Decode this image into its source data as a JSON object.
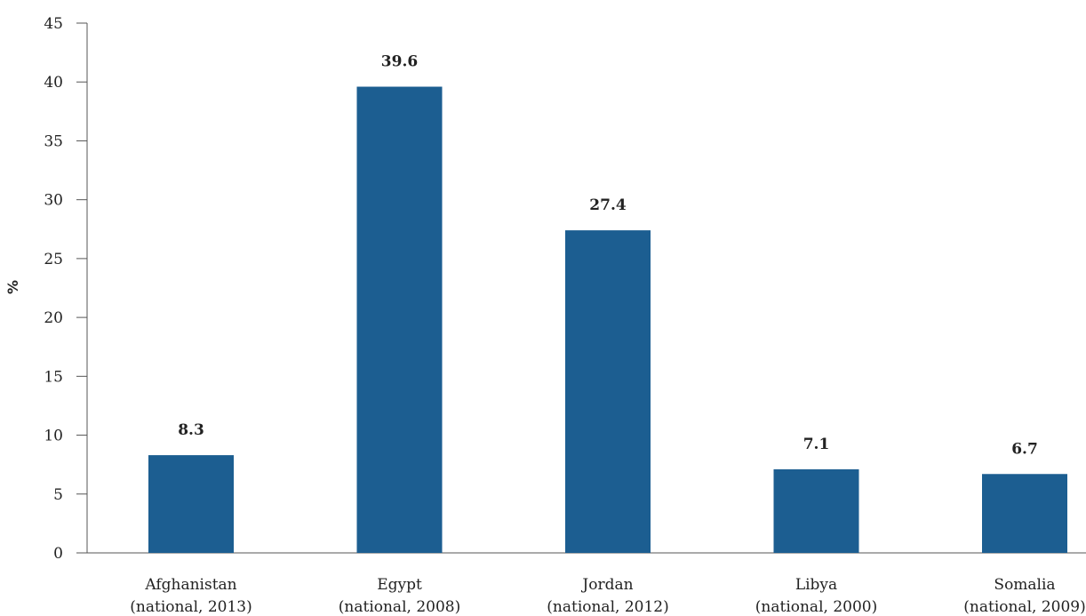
{
  "chart_data": {
    "type": "bar",
    "title": "",
    "xlabel": "",
    "ylabel": "%",
    "ylim": [
      0,
      45
    ],
    "yticks": [
      0,
      5,
      10,
      15,
      20,
      25,
      30,
      35,
      40,
      45
    ],
    "categories": [
      [
        "Afghanistan",
        "(national, 2013)"
      ],
      [
        "Egypt",
        "(national, 2008)"
      ],
      [
        "Jordan",
        "(national, 2012)"
      ],
      [
        "Libya",
        "(national, 2000)"
      ],
      [
        "Somalia",
        "(national, 2009)"
      ]
    ],
    "values": [
      8.3,
      39.6,
      27.4,
      7.1,
      6.7
    ],
    "value_labels": [
      "8.3",
      "39.6",
      "27.4",
      "7.1",
      "6.7"
    ],
    "bar_color": "#1c5e91",
    "axis_color": "#555555",
    "grid": false,
    "legend": "none"
  }
}
